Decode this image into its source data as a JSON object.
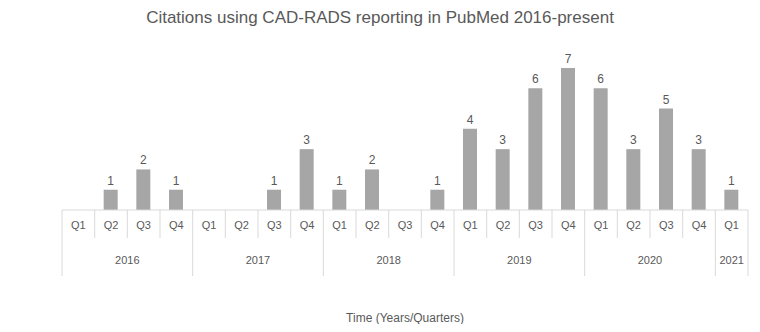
{
  "chart_data": {
    "type": "bar",
    "title": "Citations using CAD-RADS reporting in PubMed 2016-present",
    "x_label": "Time (Years/Quarters)",
    "categories": [
      "Q1",
      "Q2",
      "Q3",
      "Q4",
      "Q1",
      "Q2",
      "Q3",
      "Q4",
      "Q1",
      "Q2",
      "Q3",
      "Q4",
      "Q1",
      "Q2",
      "Q3",
      "Q4",
      "Q1",
      "Q2",
      "Q3",
      "Q4",
      "Q1"
    ],
    "category_groups": [
      "2016",
      "2016",
      "2016",
      "2016",
      "2017",
      "2017",
      "2017",
      "2017",
      "2018",
      "2018",
      "2018",
      "2018",
      "2019",
      "2019",
      "2019",
      "2019",
      "2020",
      "2020",
      "2020",
      "2020",
      "2021"
    ],
    "values": [
      0,
      1,
      2,
      1,
      0,
      0,
      1,
      3,
      1,
      2,
      0,
      1,
      4,
      3,
      6,
      7,
      6,
      3,
      5,
      3,
      1
    ],
    "color": "#a6a6a6",
    "ylim": [
      0,
      7
    ],
    "data_labels": true,
    "tick_labels": "x",
    "grid": false
  }
}
